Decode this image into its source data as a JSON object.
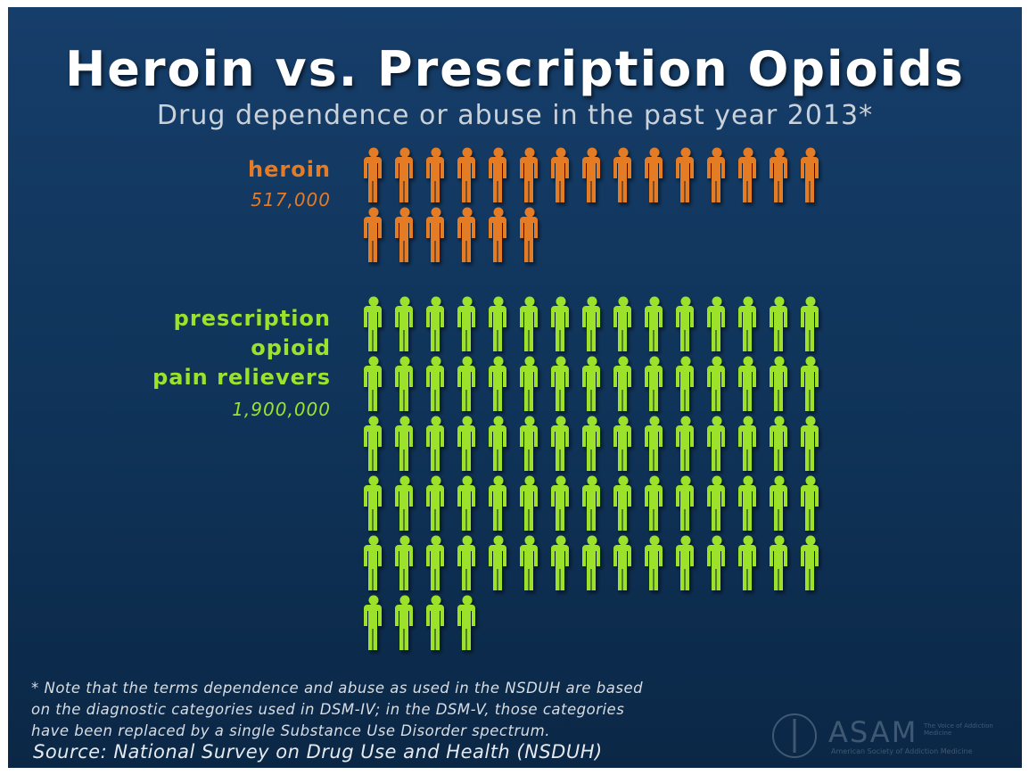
{
  "chart_data": {
    "type": "pictogram",
    "title": "Heroin vs. Prescription Opioids",
    "subtitle": "Drug dependence or abuse in the past year 2013*",
    "series": [
      {
        "name": "heroin",
        "color": "#e47b26",
        "values": [
          517000
        ],
        "value_labels": [
          "517,000"
        ]
      },
      {
        "name": "prescription\nopioid\npain relievers",
        "color": "#9de22a",
        "values": [
          1900000
        ],
        "value_labels": [
          "1,900,000"
        ]
      }
    ],
    "icons": [
      21,
      79
    ],
    "note": "* Note that the terms dependence and abuse as used in the NSDUH are based\non the diagnostic categories used in DSM-IV; in the DSM-V, those categories\nhave been replaced by a single Substance Use Disorder spectrum.",
    "source": "Source: National Survey on Drug Use and Health (NSDUH)",
    "logo": {
      "name": "ASAM",
      "tagline": "The Voice of Addiction Medicine",
      "full_name": "American Society of Addiction Medicine"
    }
  }
}
